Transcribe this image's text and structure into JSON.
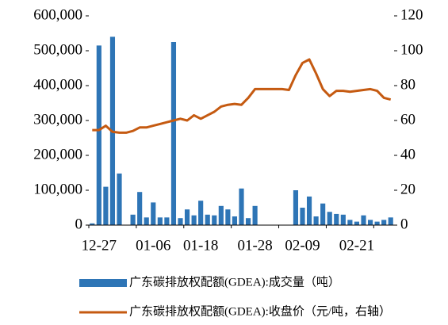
{
  "chart_data": {
    "type": "bar_line",
    "categories": [
      null,
      "12-27",
      null,
      null,
      null,
      null,
      null,
      null,
      null,
      "01-06",
      null,
      null,
      null,
      null,
      null,
      null,
      "01-18",
      null,
      null,
      null,
      null,
      null,
      null,
      null,
      "01-28",
      null,
      null,
      null,
      null,
      null,
      null,
      "02-09",
      null,
      null,
      null,
      null,
      null,
      null,
      null,
      "02-21",
      null,
      null,
      null,
      null,
      null
    ],
    "series": [
      {
        "name": "广东碳排放权配额(GDEA):成交量（吨）",
        "color": "#2e75b6",
        "kind": "bar",
        "values": [
          5000,
          515000,
          110000,
          540000,
          148000,
          null,
          30000,
          95000,
          22000,
          65000,
          22000,
          22000,
          525000,
          20000,
          45000,
          28000,
          70000,
          30000,
          28000,
          55000,
          45000,
          25000,
          105000,
          20000,
          55000,
          null,
          null,
          null,
          null,
          null,
          100000,
          50000,
          82000,
          25000,
          62000,
          38000,
          32000,
          30000,
          15000,
          10000,
          28000,
          15000,
          10000,
          15000,
          22000
        ]
      },
      {
        "name": "广东碳排放权配额(GDEA):收盘价（元/吨，右轴）",
        "color": "#c55a11",
        "kind": "line",
        "axis": "y2",
        "values": [
          54.5,
          54.5,
          57,
          53.5,
          53,
          53,
          54,
          56,
          56,
          57,
          58,
          59,
          60,
          61,
          60,
          63,
          61,
          63,
          65,
          68,
          69,
          69.5,
          69,
          73,
          78,
          78,
          78,
          78,
          78,
          77.5,
          86,
          93,
          95,
          87,
          78,
          74,
          77,
          77,
          76.5,
          77,
          77.5,
          78,
          77,
          73,
          72
        ]
      }
    ],
    "ylim": [
      0,
      600000
    ],
    "yticks": [
      0,
      {
        "value": 100000,
        "label": "100,000"
      },
      {
        "value": 200000,
        "label": "200,000"
      },
      {
        "value": 300000,
        "label": "300,000"
      },
      {
        "value": 400000,
        "label": "400,000"
      },
      {
        "value": 500000,
        "label": "500,000"
      },
      {
        "value": 600000,
        "label": "600,000"
      }
    ],
    "y2lim": [
      0,
      120
    ],
    "y2ticks": [
      0,
      20,
      40,
      60,
      80,
      100,
      120
    ]
  }
}
